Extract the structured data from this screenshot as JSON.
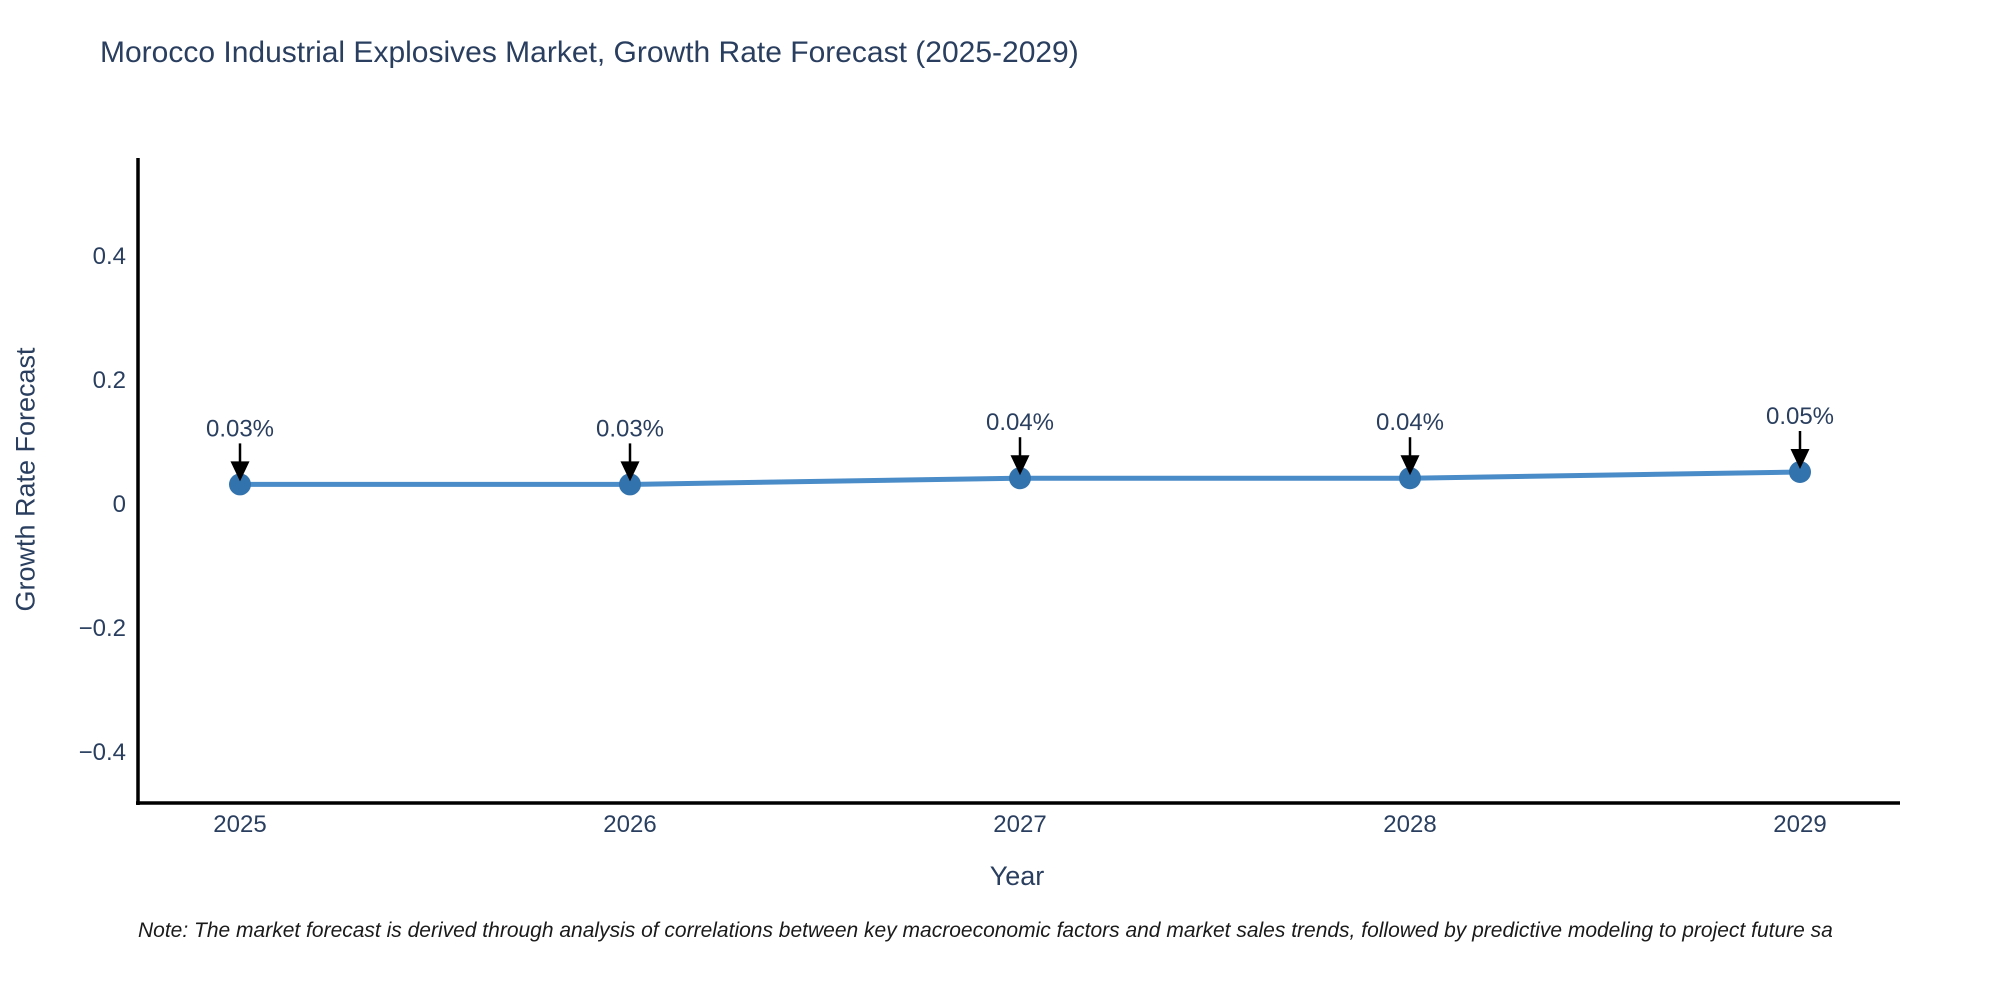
{
  "chart": {
    "title": "Morocco Industrial Explosives Market, Growth Rate Forecast (2025-2029)",
    "y_axis_title": "Growth Rate Forecast",
    "x_axis_title": "Year",
    "note": "Note: The market forecast is derived through analysis of correlations between key macroeconomic factors and market sales trends, followed by predictive modeling to project future sa",
    "colors": {
      "line": "#4a8cc7",
      "marker": "#3273ae",
      "axis": "#000000",
      "text": "#2a3f5f",
      "arrow": "#000000",
      "background": "#ffffff"
    }
  },
  "chart_data": {
    "type": "line",
    "title": "Morocco Industrial Explosives Market, Growth Rate Forecast (2025-2029)",
    "xlabel": "Year",
    "ylabel": "Growth Rate Forecast",
    "categories": [
      "2025",
      "2026",
      "2027",
      "2028",
      "2029"
    ],
    "series": [
      {
        "name": "Growth Rate Forecast",
        "values": [
          0.03,
          0.03,
          0.04,
          0.04,
          0.05
        ],
        "point_labels": [
          "0.03%",
          "0.03%",
          "0.04%",
          "0.04%",
          "0.05%"
        ]
      }
    ],
    "ytick_values": [
      0.4,
      0.2,
      0,
      -0.2,
      -0.4
    ],
    "ytick_labels": [
      "0.4",
      "0.2",
      "0",
      "−0.2",
      "−0.4"
    ],
    "ylim": [
      -0.48,
      0.55
    ],
    "grid": false,
    "legend": "none",
    "annotations": "arrow labels above each point",
    "note": "Note: The market forecast is derived through analysis of correlations between key macroeconomic factors and market sales trends, followed by predictive modeling to project future sa"
  }
}
